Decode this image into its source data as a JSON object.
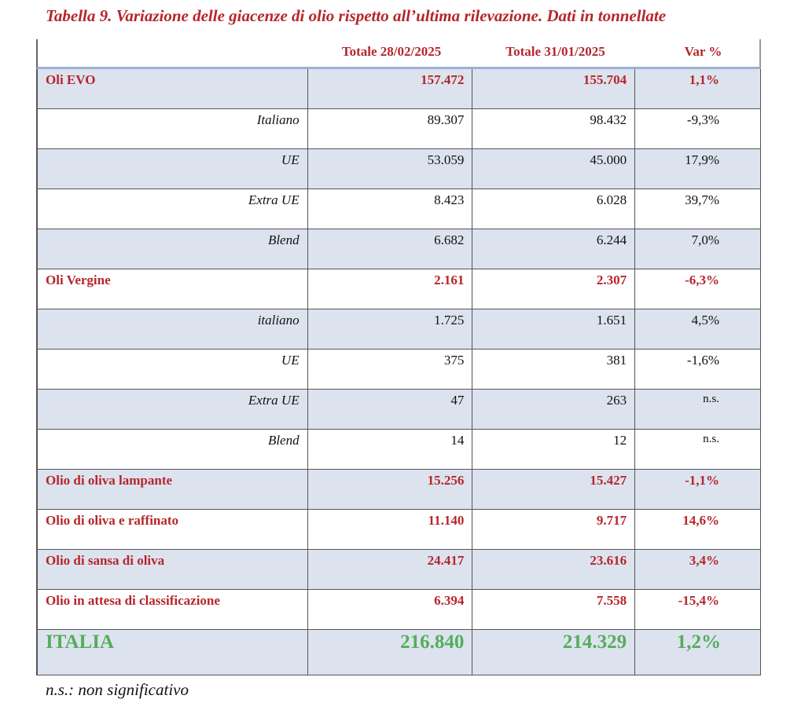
{
  "title": "Tabella 9. Variazione delle giacenze di olio rispetto all’ultima rilevazione. Dati in tonnellate",
  "headers": [
    "Totale 28/02/2025",
    "Totale 31/01/2025",
    "Var %"
  ],
  "rows": [
    {
      "label": "Oli EVO",
      "v1": "157.472",
      "v2": "155.704",
      "var": "1,1%"
    },
    {
      "label": "Italiano",
      "v1": "89.307",
      "v2": "98.432",
      "var": "-9,3%"
    },
    {
      "label": "UE",
      "v1": "53.059",
      "v2": "45.000",
      "var": "17,9%"
    },
    {
      "label": "Extra UE",
      "v1": "8.423",
      "v2": "6.028",
      "var": "39,7%"
    },
    {
      "label": "Blend",
      "v1": "6.682",
      "v2": "6.244",
      "var": "7,0%"
    },
    {
      "label": "Oli Vergine",
      "v1": "2.161",
      "v2": "2.307",
      "var": "-6,3%"
    },
    {
      "label": "italiano",
      "v1": "1.725",
      "v2": "1.651",
      "var": "4,5%"
    },
    {
      "label": "UE",
      "v1": "375",
      "v2": "381",
      "var": "-1,6%"
    },
    {
      "label": "Extra UE",
      "v1": "47",
      "v2": "263",
      "var": "n.s."
    },
    {
      "label": "Blend",
      "v1": "14",
      "v2": "12",
      "var": "n.s."
    },
    {
      "label": "Olio di oliva lampante",
      "v1": "15.256",
      "v2": "15.427",
      "var": "-1,1%"
    },
    {
      "label": "Olio di oliva e raffinato",
      "v1": "11.140",
      "v2": "9.717",
      "var": "14,6%"
    },
    {
      "label": "Olio di sansa di oliva",
      "v1": "24.417",
      "v2": "23.616",
      "var": "3,4%"
    },
    {
      "label": "Olio in attesa di classificazione",
      "v1": "6.394",
      "v2": "7.558",
      "var": "-15,4%"
    },
    {
      "label": "ITALIA",
      "v1": "216.840",
      "v2": "214.329",
      "var": "1,2%"
    }
  ],
  "footnote": "n.s.: non significativo",
  "colors": {
    "accent": "#b5262b",
    "total": "#55ad5a",
    "row_bg": "#dce3ef"
  }
}
